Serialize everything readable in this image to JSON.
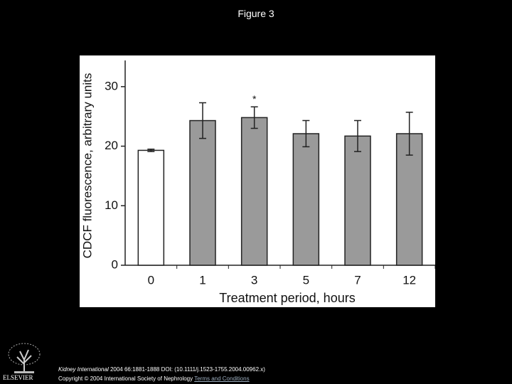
{
  "header": {
    "title": "Figure 3"
  },
  "chart_data": {
    "type": "bar",
    "xlabel": "Treatment period, hours",
    "ylabel": "CDCF fluorescence, arbitrary units",
    "categories": [
      "0",
      "1",
      "3",
      "5",
      "7",
      "12"
    ],
    "values": [
      19.3,
      24.3,
      24.8,
      22.1,
      21.7,
      22.1
    ],
    "errors": [
      0.2,
      3.0,
      1.8,
      2.2,
      2.6,
      3.6
    ],
    "colors": [
      "#ffffff",
      "#9a9a9a",
      "#9a9a9a",
      "#9a9a9a",
      "#9a9a9a",
      "#9a9a9a"
    ],
    "ylim": [
      0,
      34.4
    ],
    "yticks": [
      0,
      10,
      20,
      30
    ],
    "annotations": [
      {
        "text": "*",
        "x": "3"
      }
    ]
  },
  "footer": {
    "journal": "Kidney International",
    "citation": "2004 66:1881-1888 DOI: (10.1111/j.1523-1755.2004.00962.x)",
    "copyright": "Copyright © 2004 International Society of Nephrology",
    "link": "Terms and Conditions",
    "logo": "ELSEVIER"
  }
}
